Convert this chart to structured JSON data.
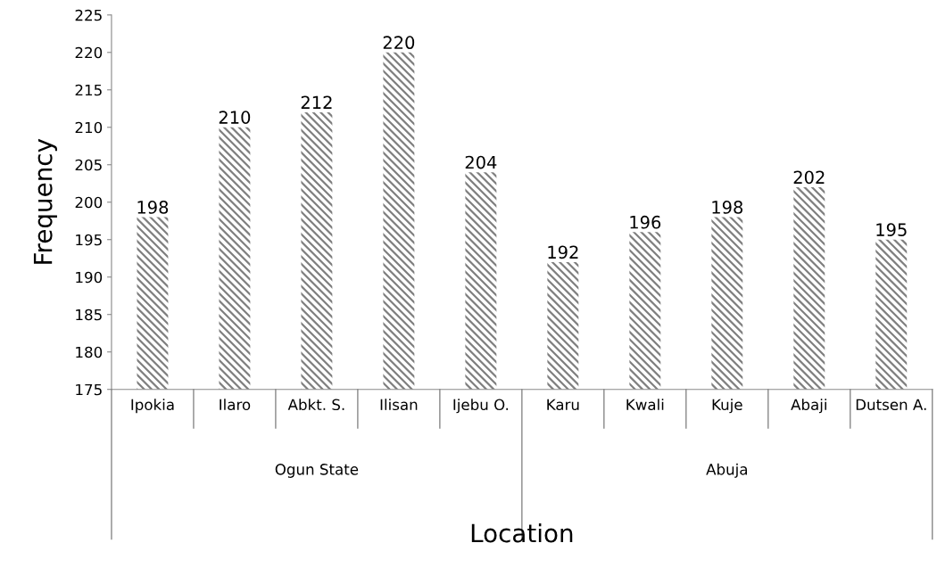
{
  "chart_data": {
    "type": "bar",
    "xlabel": "Location",
    "ylabel": "Frequency",
    "categories": [
      "Ipokia",
      "Ilaro",
      "Abkt. S.",
      "Ilisan",
      "Ijebu O.",
      "Karu",
      "Kwali",
      "Kuje",
      "Abaji",
      "Dutsen A."
    ],
    "values": [
      198,
      210,
      212,
      220,
      204,
      192,
      196,
      198,
      202,
      195
    ],
    "color": "#7f7f7f",
    "ylim": [
      175,
      225
    ],
    "yticks": [
      175,
      180,
      185,
      190,
      195,
      200,
      205,
      210,
      215,
      220,
      225
    ],
    "data_labels": true,
    "annotations": [
      "Ogun State",
      "Abuja"
    ]
  }
}
